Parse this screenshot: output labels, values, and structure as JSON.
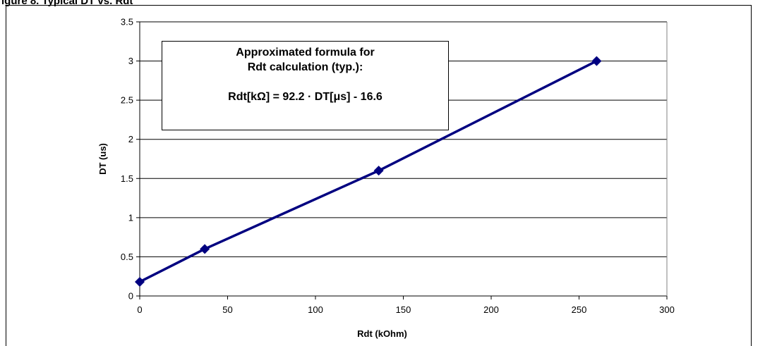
{
  "figure_caption": "igure 8. Typical DT vs. Rdt",
  "annotation": {
    "line1": "Approximated formula for",
    "line2": "Rdt calculation (typ.):",
    "formula": "Rdt[kΩ] = 92.2 · DT[μs] - 16.6"
  },
  "chart_data": {
    "type": "line",
    "title": "",
    "xlabel": "Rdt (kOhm)",
    "ylabel": "DT (us)",
    "xlim": [
      0,
      300
    ],
    "ylim": [
      0,
      3.5
    ],
    "x_ticks": [
      "0",
      "50",
      "100",
      "150",
      "200",
      "250",
      "300"
    ],
    "y_ticks": [
      "0",
      "0.5",
      "1",
      "1.5",
      "2",
      "2.5",
      "3",
      "3.5"
    ],
    "grid": "horizontal",
    "series": [
      {
        "color": "#000080",
        "marker": "diamond",
        "x": [
          0,
          37,
          136,
          260
        ],
        "y": [
          0.18,
          0.6,
          1.6,
          3.0
        ]
      }
    ]
  }
}
